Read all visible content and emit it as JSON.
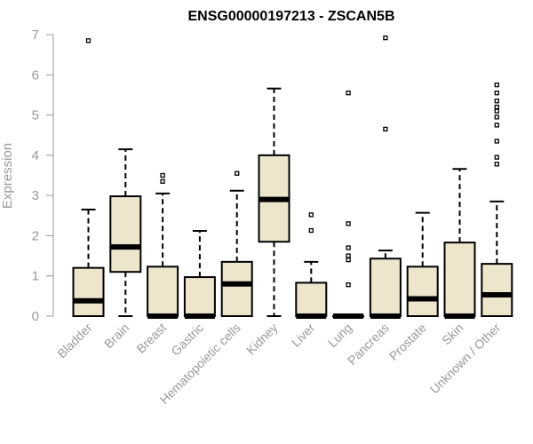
{
  "chart_data": {
    "type": "boxplot",
    "title": "ENSG00000197213 - ZSCAN5B",
    "ylabel": "Expression",
    "ylim": [
      0,
      7
    ],
    "yticks": [
      0,
      1,
      2,
      3,
      4,
      5,
      6,
      7
    ],
    "box_fill": "#ede6cd",
    "categories": [
      "Bladder",
      "Brain",
      "Breast",
      "Gastric",
      "Hematopoietic cells",
      "Kidney",
      "Liver",
      "Lung",
      "Pancreas",
      "Prostate",
      "Skin",
      "Unknown / Other"
    ],
    "boxes": [
      {
        "whisker_low": 0,
        "q1": 0,
        "median": 0.38,
        "q3": 1.2,
        "whisker_high": 2.65,
        "outliers": [
          6.85
        ]
      },
      {
        "whisker_low": 0,
        "q1": 1.1,
        "median": 1.72,
        "q3": 2.98,
        "whisker_high": 4.15,
        "outliers": []
      },
      {
        "whisker_low": 0,
        "q1": 0,
        "median": 0,
        "q3": 1.23,
        "whisker_high": 3.05,
        "outliers": [
          3.35,
          3.5
        ]
      },
      {
        "whisker_low": 0,
        "q1": 0,
        "median": 0,
        "q3": 0.97,
        "whisker_high": 2.12,
        "outliers": []
      },
      {
        "whisker_low": 0,
        "q1": 0,
        "median": 0.8,
        "q3": 1.35,
        "whisker_high": 3.12,
        "outliers": [
          3.55
        ]
      },
      {
        "whisker_low": 0,
        "q1": 1.85,
        "median": 2.9,
        "q3": 4.0,
        "whisker_high": 5.66,
        "outliers": []
      },
      {
        "whisker_low": 0,
        "q1": 0,
        "median": 0,
        "q3": 0.83,
        "whisker_high": 1.35,
        "outliers": [
          2.13,
          2.52
        ]
      },
      {
        "whisker_low": 0,
        "q1": 0,
        "median": 0,
        "q3": 0,
        "whisker_high": 0,
        "outliers": [
          0.78,
          1.4,
          1.5,
          1.7,
          2.3,
          5.55
        ]
      },
      {
        "whisker_low": 0,
        "q1": 0,
        "median": 0,
        "q3": 1.43,
        "whisker_high": 1.63,
        "outliers": [
          4.65,
          6.92
        ]
      },
      {
        "whisker_low": 0,
        "q1": 0,
        "median": 0.43,
        "q3": 1.23,
        "whisker_high": 2.57,
        "outliers": []
      },
      {
        "whisker_low": 0,
        "q1": 0,
        "median": 0,
        "q3": 1.83,
        "whisker_high": 3.66,
        "outliers": []
      },
      {
        "whisker_low": 0,
        "q1": 0,
        "median": 0.53,
        "q3": 1.3,
        "whisker_high": 2.85,
        "outliers": [
          3.78,
          3.95,
          4.35,
          4.75,
          4.95,
          5.1,
          5.2,
          5.35,
          5.55,
          5.75
        ]
      }
    ]
  }
}
